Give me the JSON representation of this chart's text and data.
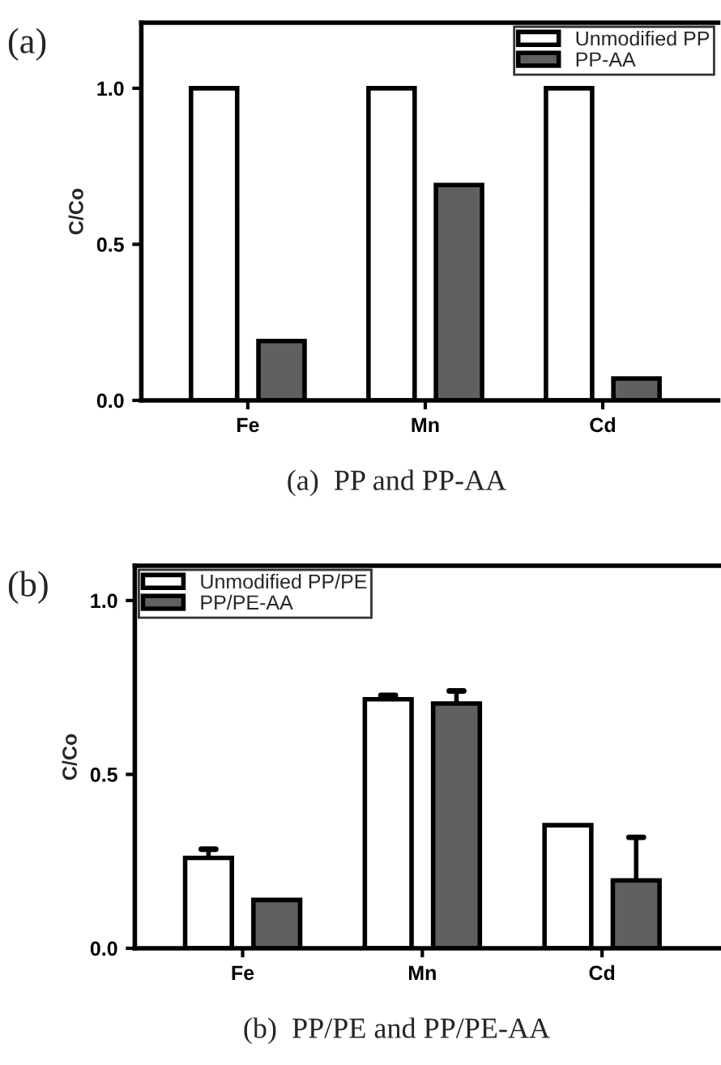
{
  "chart_data": [
    {
      "type": "bar",
      "ylabel": "C/Co",
      "categories": [
        "Fe",
        "Mn",
        "Cd"
      ],
      "ylim": [
        0,
        1.21
      ],
      "yticks": [
        {
          "value": 0,
          "label": "0.0"
        },
        {
          "value": 0.5,
          "label": "0.5"
        },
        {
          "value": 1,
          "label": "1.0"
        }
      ],
      "legend": "top right",
      "grid": false,
      "series": [
        {
          "name": "Unmodified PP",
          "color": "#ffffff",
          "values": [
            1.0,
            1.0,
            1.0
          ]
        },
        {
          "name": "PP-AA",
          "color": "#606060",
          "values": [
            0.19,
            0.69,
            0.07
          ]
        }
      ],
      "annotations": [
        "(a)",
        "(a)  PP and PP-AA"
      ]
    },
    {
      "type": "bar",
      "ylabel": "C/Co",
      "categories": [
        "Fe",
        "Mn",
        "Cd"
      ],
      "ylim": [
        0,
        1.1
      ],
      "yticks": [
        {
          "value": 0,
          "label": "0.0"
        },
        {
          "value": 0.5,
          "label": "0.5"
        },
        {
          "value": 1,
          "label": "1.0"
        }
      ],
      "legend": "top left",
      "grid": false,
      "series": [
        {
          "name": "Unmodified PP/PE",
          "color": "#ffffff",
          "values": [
            0.26,
            0.716,
            0.354
          ],
          "errors": [
            [
              0.26,
              0.285
            ],
            [
              0.716,
              0.727
            ],
            null
          ]
        },
        {
          "name": "PP/PE-AA",
          "color": "#606060",
          "values": [
            0.139,
            0.704,
            0.195
          ],
          "errors": [
            null,
            [
              0.704,
              0.74
            ],
            [
              0.195,
              0.319
            ]
          ]
        }
      ],
      "annotations": [
        "(b)",
        "(b)  PP/PE and PP/PE-AA"
      ]
    }
  ]
}
